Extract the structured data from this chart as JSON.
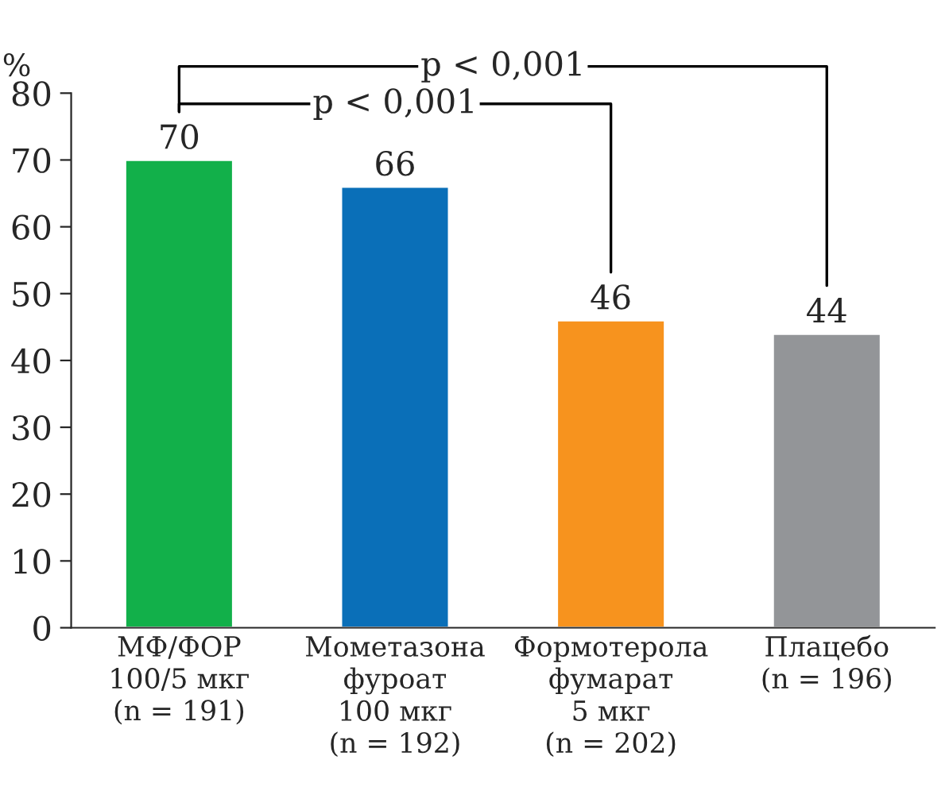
{
  "chart_data": {
    "type": "bar",
    "ylabel": "%",
    "categories": [
      "МФ/ФОР\n100/5 мкг\n(n = 191)",
      "Мометазона\nфуроат\n100 мкг\n(n = 192)",
      "Формотерола\nфумарат\n5 мкг\n(n = 202)",
      "Плацебо\n(n = 196)"
    ],
    "values": [
      70,
      66,
      46,
      44
    ],
    "colors": [
      "#12b04a",
      "#0a6fb8",
      "#f7931e",
      "#939598"
    ],
    "ylim": [
      0,
      80
    ],
    "yticks": [
      0,
      10,
      20,
      30,
      40,
      50,
      60,
      70,
      80
    ],
    "data_labels": true,
    "grid": false,
    "annotations": [
      "p < 0,001",
      "p < 0,001"
    ]
  }
}
